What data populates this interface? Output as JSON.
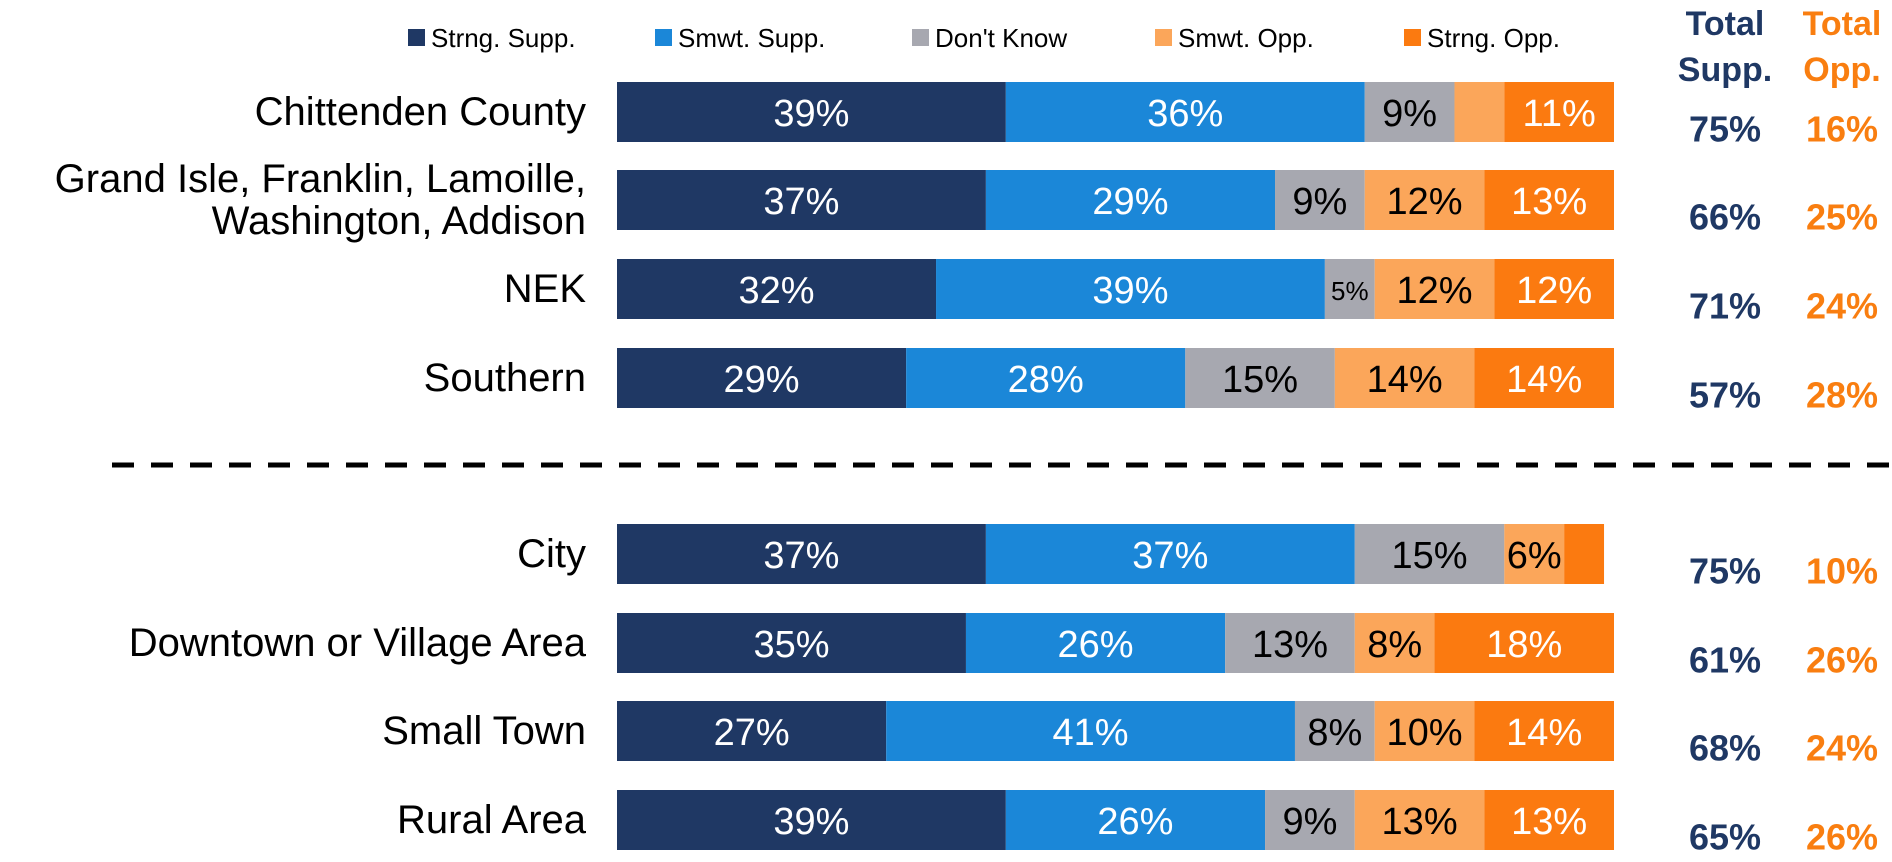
{
  "chart_data": {
    "type": "stacked_bar_horizontal",
    "categories": [
      "Chittenden County",
      "Grand Isle, Franklin, Lamoille, Washington, Addison",
      "NEK",
      "Southern",
      "City",
      "Downtown or Village Area",
      "Small Town",
      "Rural Area"
    ],
    "xlim": [
      0,
      100
    ],
    "legend": "top",
    "series": [
      {
        "name": "Strng. Supp.",
        "color": "#1f3864",
        "label_color": "#ffffff",
        "values": [
          39,
          37,
          32,
          29,
          37,
          35,
          27,
          39
        ],
        "value_labels": [
          "39%",
          "37%",
          "32%",
          "29%",
          "37%",
          "35%",
          "27%",
          "39%"
        ]
      },
      {
        "name": "Smwt. Supp.",
        "color": "#1b87d8",
        "label_color": "#ffffff",
        "values": [
          36,
          29,
          39,
          28,
          37,
          26,
          41,
          26
        ],
        "value_labels": [
          "36%",
          "29%",
          "39%",
          "28%",
          "37%",
          "26%",
          "41%",
          "26%"
        ]
      },
      {
        "name": "Don't Know",
        "color": "#a7a8b0",
        "label_color": "#000000",
        "values": [
          9,
          9,
          5,
          15,
          15,
          13,
          8,
          9
        ],
        "value_labels": [
          "9%",
          "9%",
          "5%",
          "15%",
          "15%",
          "13%",
          "8%",
          "9%"
        ]
      },
      {
        "name": "Smwt. Opp.",
        "color": "#fba65a",
        "label_color": "#000000",
        "values": [
          5,
          12,
          12,
          14,
          6,
          8,
          10,
          13
        ],
        "value_labels": [
          null,
          "12%",
          "12%",
          "14%",
          "6%",
          "8%",
          "10%",
          "13%"
        ]
      },
      {
        "name": "Strng. Opp.",
        "color": "#fb7a10",
        "label_color": "#ffffff",
        "values": [
          11,
          13,
          12,
          14,
          4,
          18,
          14,
          13
        ],
        "value_labels": [
          "11%",
          "13%",
          "12%",
          "14%",
          null,
          "18%",
          "14%",
          "13%"
        ]
      }
    ],
    "totals": [
      {
        "header": [
          "Total",
          "Supp."
        ],
        "color": "#1f3864",
        "values": [
          75,
          66,
          71,
          57,
          75,
          61,
          68,
          65
        ],
        "value_labels": [
          "75%",
          "66%",
          "71%",
          "57%",
          "75%",
          "61%",
          "68%",
          "65%"
        ]
      },
      {
        "header": [
          "Total",
          "Opp."
        ],
        "color": "#f97e10",
        "values": [
          16,
          25,
          24,
          28,
          10,
          26,
          24,
          26
        ],
        "value_labels": [
          "16%",
          "25%",
          "24%",
          "28%",
          "10%",
          "26%",
          "24%",
          "26%"
        ]
      }
    ]
  }
}
